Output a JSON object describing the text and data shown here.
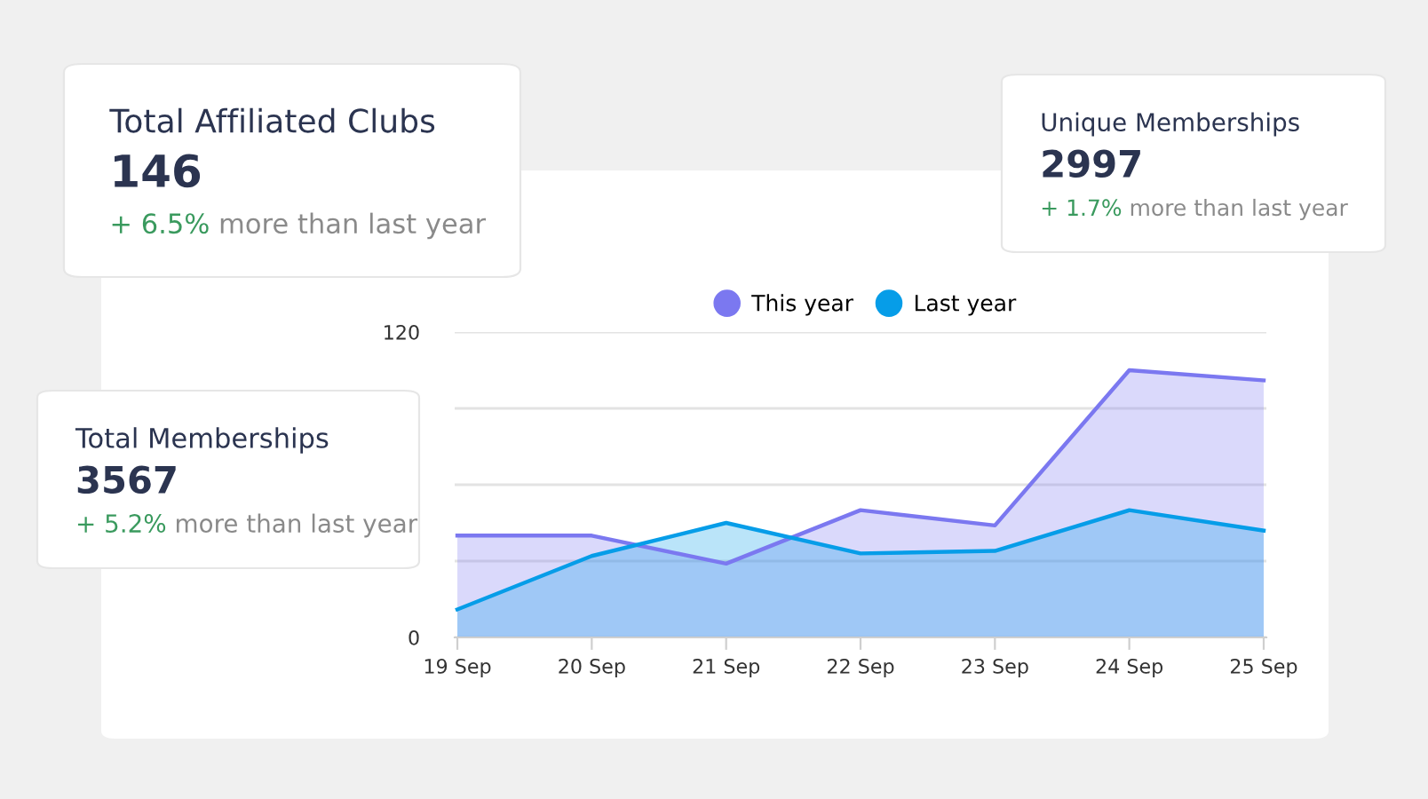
{
  "chart_data": [
    {
      "type": "area",
      "legend": "top",
      "grid": "y",
      "ylim": [
        0,
        120
      ],
      "categories": [
        "19 Sep",
        "20 Sep",
        "21 Sep",
        "22 Sep",
        "23 Sep",
        "24 Sep",
        "25 Sep"
      ],
      "yticks": [
        0,
        {
          "value": 30,
          "label": null
        },
        {
          "value": 60,
          "label": null
        },
        {
          "value": 90,
          "label": null
        },
        120
      ],
      "series": [
        {
          "name": "This year",
          "color": "#7b78f0",
          "values": [
            40,
            40,
            29,
            50,
            44,
            105,
            101
          ]
        },
        {
          "name": "Last year",
          "color": "#069de8",
          "values": [
            11,
            32,
            45,
            33,
            34,
            50,
            42
          ]
        }
      ]
    },
    {
      "type": "other",
      "title": "Total Affiliated Clubs",
      "annotations": [
        "146",
        "+ 6.5%",
        "more than last year"
      ]
    },
    {
      "type": "other",
      "title": "Total Memberships",
      "annotations": [
        "3567",
        "+ 5.2%",
        "more than last year"
      ]
    },
    {
      "type": "other",
      "title": "Unique Memberships",
      "annotations": [
        "2997",
        "+ 1.7%",
        "more than last year"
      ]
    }
  ]
}
